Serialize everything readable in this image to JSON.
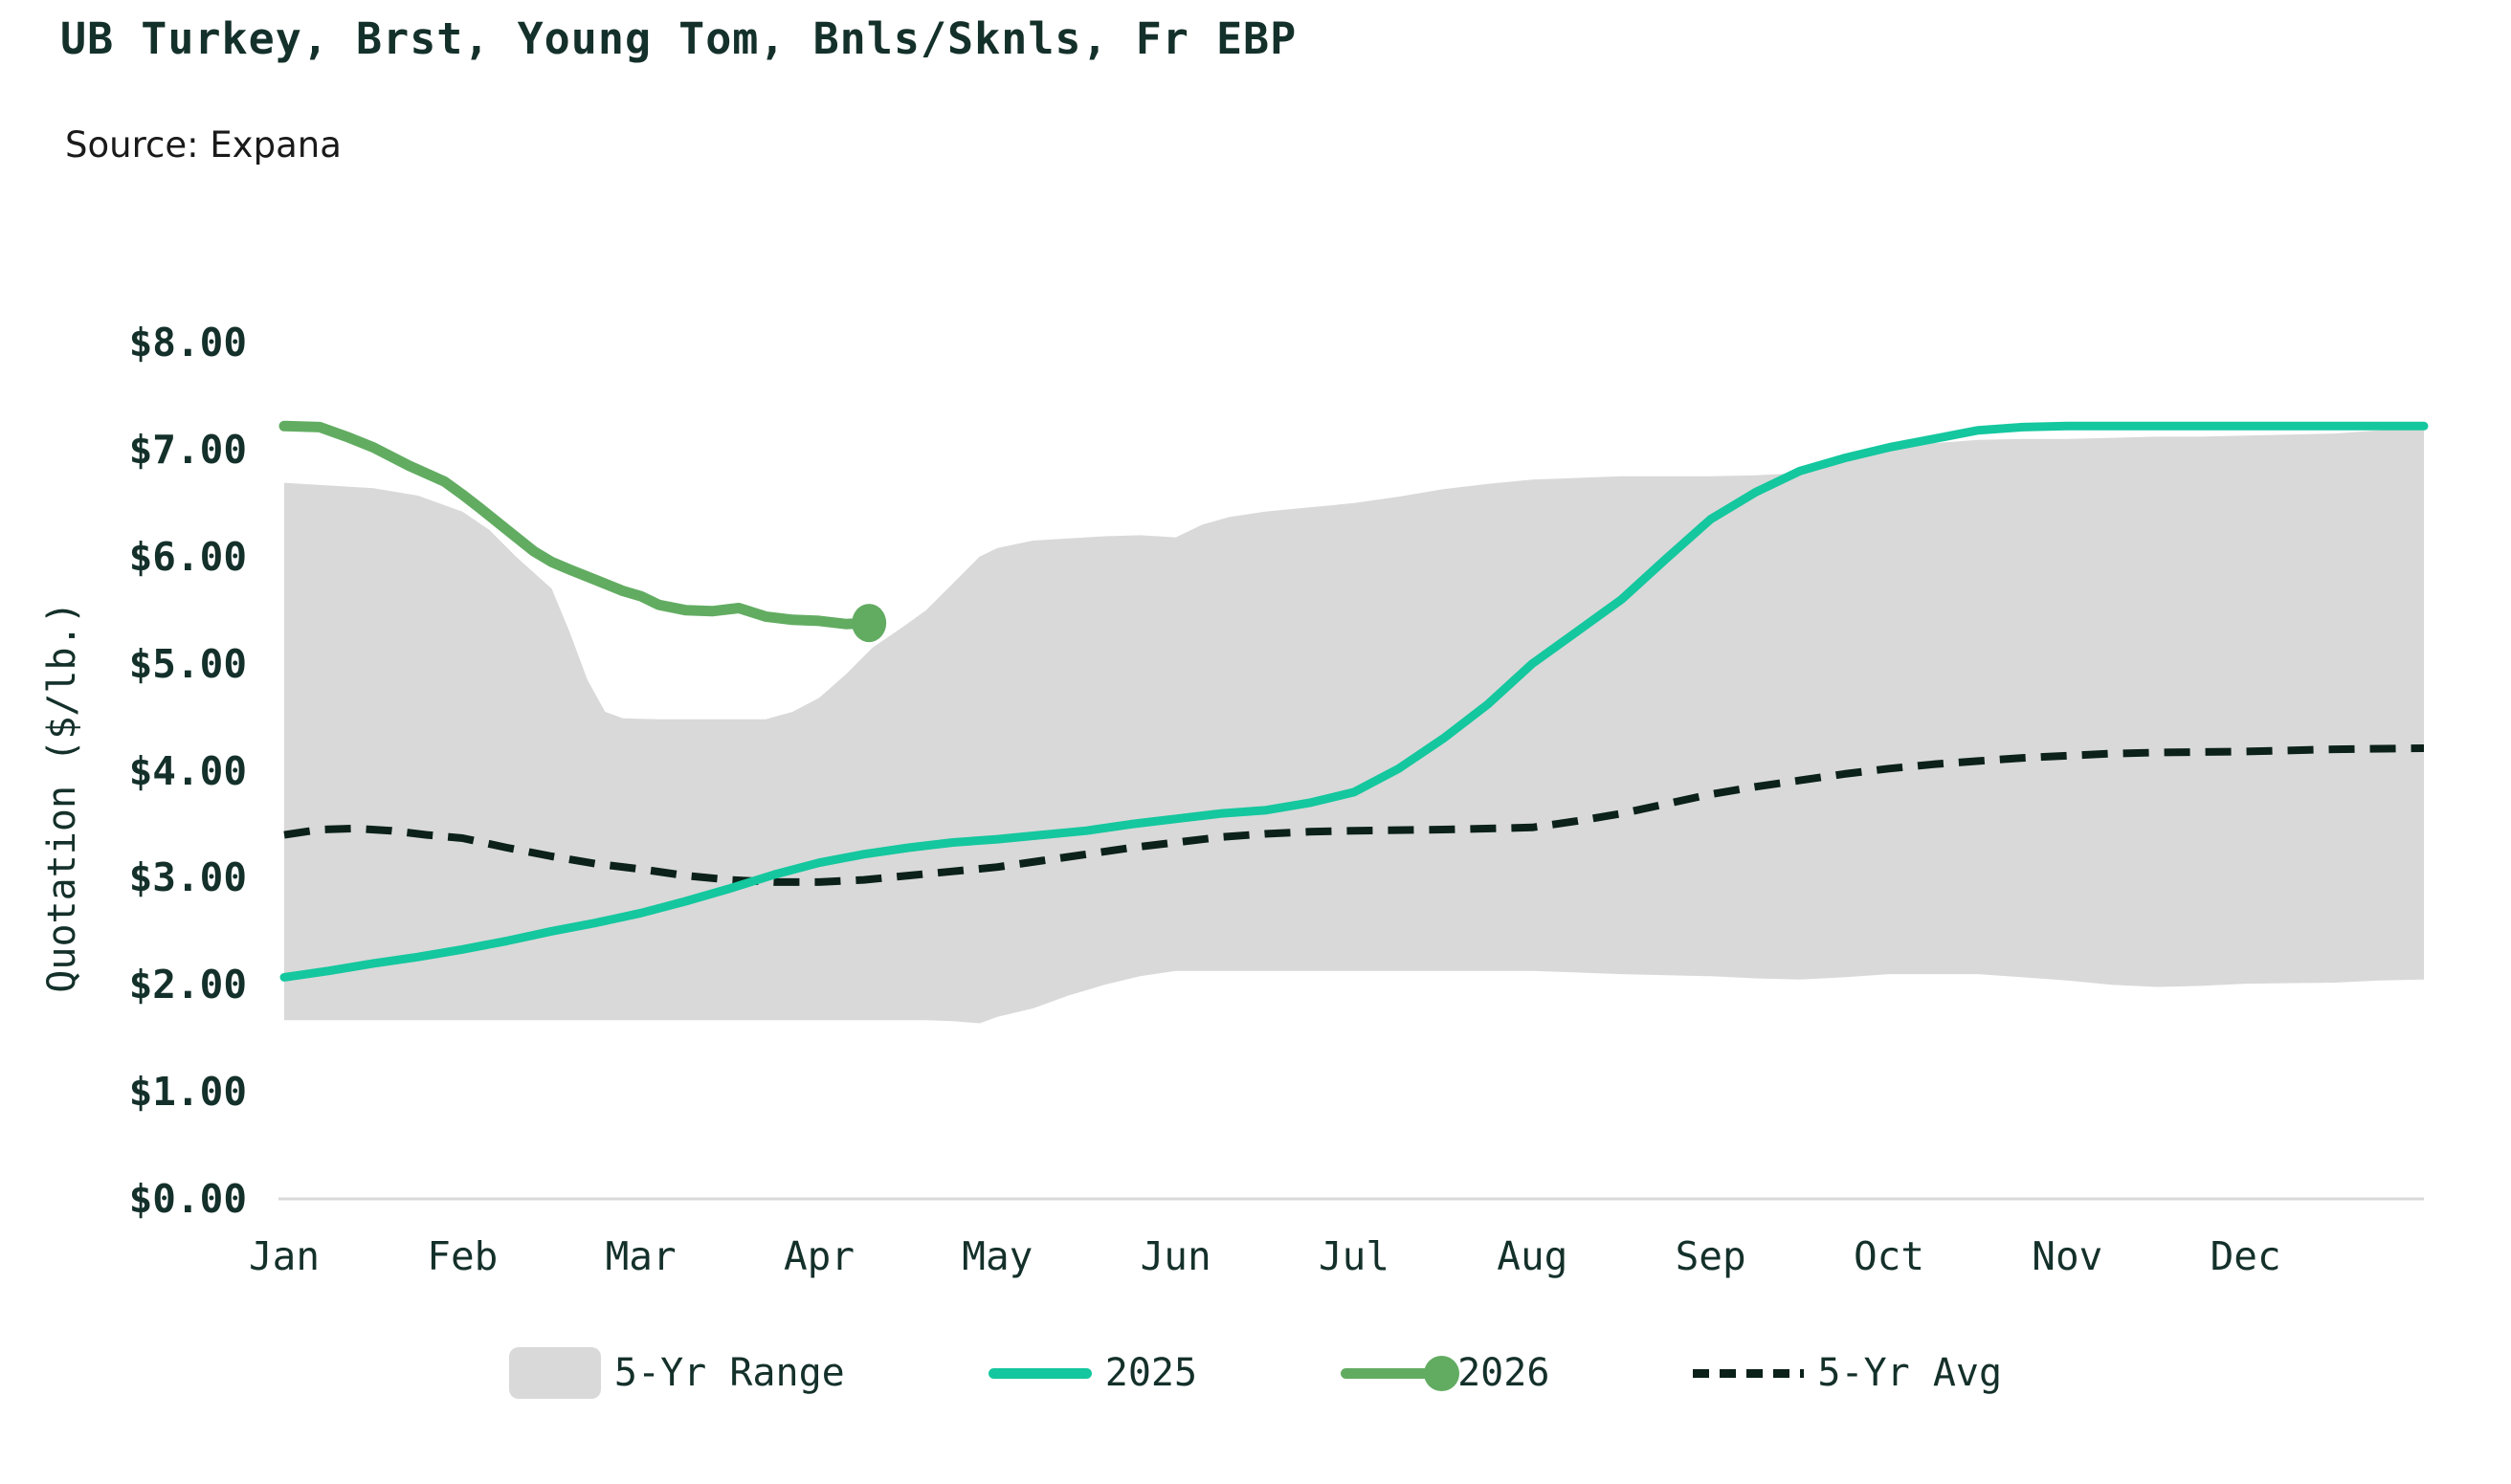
{
  "header": {
    "title": "UB Turkey, Brst, Young Tom, Bnls/Sknls, Fr EBP",
    "source": "Source: Expana"
  },
  "colors": {
    "band": "#d9d9d9",
    "line_2025": "#14c79e",
    "line_2026": "#62ac62",
    "line_avg": "#0b2119",
    "dark_text": "#14302a",
    "axis_line": "#d9d9d9"
  },
  "chart_data": {
    "type": "line",
    "title": "UB Turkey, Brst, Young Tom, Bnls/Sknls, Fr EBP",
    "subtitle": "Source: Expana",
    "xlabel": "",
    "ylabel": "Quotation ($/lb.)",
    "ylim": [
      0,
      8
    ],
    "xlim_months": [
      0,
      12
    ],
    "grid": false,
    "legend_position": "bottom",
    "x_unit": "month index, 0 = Jan 1 through 12 = Dec 31",
    "months": [
      "Jan",
      "Feb",
      "Mar",
      "Apr",
      "May",
      "Jun",
      "Jul",
      "Aug",
      "Sep",
      "Oct",
      "Nov",
      "Dec"
    ],
    "y_ticks": [
      {
        "value": 0,
        "label": "$0.00"
      },
      {
        "value": 1,
        "label": "$1.00"
      },
      {
        "value": 2,
        "label": "$2.00"
      },
      {
        "value": 3,
        "label": "$3.00"
      },
      {
        "value": 4,
        "label": "$4.00"
      },
      {
        "value": 5,
        "label": "$5.00"
      },
      {
        "value": 6,
        "label": "$6.00"
      },
      {
        "value": 7,
        "label": "$7.00"
      },
      {
        "value": 8,
        "label": "$8.00"
      }
    ],
    "series": [
      {
        "name": "5-Yr Range",
        "type": "band",
        "color": "#d9d9d9",
        "points": [
          [
            0,
            1.67,
            6.69
          ],
          [
            0.5,
            1.67,
            6.64
          ],
          [
            0.75,
            1.67,
            6.57
          ],
          [
            1.0,
            1.67,
            6.42
          ],
          [
            1.15,
            1.67,
            6.25
          ],
          [
            1.3,
            1.67,
            6.0
          ],
          [
            1.5,
            1.67,
            5.7
          ],
          [
            1.6,
            1.67,
            5.3
          ],
          [
            1.7,
            1.67,
            4.85
          ],
          [
            1.8,
            1.67,
            4.55
          ],
          [
            1.9,
            1.67,
            4.49
          ],
          [
            2.1,
            1.67,
            4.48
          ],
          [
            2.4,
            1.67,
            4.48
          ],
          [
            2.7,
            1.67,
            4.48
          ],
          [
            2.85,
            1.67,
            4.55
          ],
          [
            3.0,
            1.67,
            4.68
          ],
          [
            3.15,
            1.67,
            4.9
          ],
          [
            3.3,
            1.67,
            5.15
          ],
          [
            3.45,
            1.67,
            5.32
          ],
          [
            3.6,
            1.67,
            5.5
          ],
          [
            3.75,
            1.66,
            5.75
          ],
          [
            3.9,
            1.64,
            6.0
          ],
          [
            4.0,
            1.7,
            6.08
          ],
          [
            4.2,
            1.78,
            6.15
          ],
          [
            4.4,
            1.9,
            6.17
          ],
          [
            4.6,
            2.0,
            6.19
          ],
          [
            4.8,
            2.08,
            6.2
          ],
          [
            5.0,
            2.13,
            6.18
          ],
          [
            5.15,
            2.13,
            6.3
          ],
          [
            5.3,
            2.13,
            6.37
          ],
          [
            5.5,
            2.13,
            6.42
          ],
          [
            5.75,
            2.13,
            6.46
          ],
          [
            6.0,
            2.13,
            6.5
          ],
          [
            6.25,
            2.13,
            6.56
          ],
          [
            6.5,
            2.13,
            6.63
          ],
          [
            6.75,
            2.13,
            6.68
          ],
          [
            7.0,
            2.13,
            6.72
          ],
          [
            7.5,
            2.1,
            6.75
          ],
          [
            8.0,
            2.08,
            6.75
          ],
          [
            8.25,
            2.06,
            6.76
          ],
          [
            8.5,
            2.05,
            6.78
          ],
          [
            8.75,
            2.07,
            6.88
          ],
          [
            9.0,
            2.1,
            7.0
          ],
          [
            9.25,
            2.1,
            7.06
          ],
          [
            9.5,
            2.1,
            7.09
          ],
          [
            9.75,
            2.07,
            7.1
          ],
          [
            10.0,
            2.04,
            7.1
          ],
          [
            10.25,
            2.0,
            7.11
          ],
          [
            10.5,
            1.98,
            7.12
          ],
          [
            10.75,
            1.99,
            7.12
          ],
          [
            11.0,
            2.01,
            7.13
          ],
          [
            11.5,
            2.02,
            7.15
          ],
          [
            11.75,
            2.04,
            7.18
          ],
          [
            12,
            2.05,
            7.2
          ]
        ]
      },
      {
        "name": "2025",
        "type": "line",
        "color": "#14c79e",
        "points": [
          [
            0,
            2.07
          ],
          [
            0.25,
            2.13
          ],
          [
            0.5,
            2.2
          ],
          [
            0.75,
            2.26
          ],
          [
            1.0,
            2.33
          ],
          [
            1.25,
            2.41
          ],
          [
            1.5,
            2.5
          ],
          [
            1.75,
            2.58
          ],
          [
            2.0,
            2.67
          ],
          [
            2.25,
            2.78
          ],
          [
            2.5,
            2.9
          ],
          [
            2.75,
            3.03
          ],
          [
            3.0,
            3.14
          ],
          [
            3.25,
            3.22
          ],
          [
            3.5,
            3.28
          ],
          [
            3.75,
            3.33
          ],
          [
            4.0,
            3.36
          ],
          [
            4.25,
            3.4
          ],
          [
            4.5,
            3.44
          ],
          [
            4.75,
            3.5
          ],
          [
            5.0,
            3.55
          ],
          [
            5.25,
            3.6
          ],
          [
            5.5,
            3.63
          ],
          [
            5.75,
            3.7
          ],
          [
            6.0,
            3.8
          ],
          [
            6.25,
            4.02
          ],
          [
            6.5,
            4.3
          ],
          [
            6.75,
            4.62
          ],
          [
            7.0,
            5.0
          ],
          [
            7.25,
            5.3
          ],
          [
            7.5,
            5.6
          ],
          [
            7.75,
            5.98
          ],
          [
            8.0,
            6.35
          ],
          [
            8.25,
            6.6
          ],
          [
            8.5,
            6.8
          ],
          [
            8.75,
            6.92
          ],
          [
            9.0,
            7.02
          ],
          [
            9.25,
            7.1
          ],
          [
            9.5,
            7.18
          ],
          [
            9.75,
            7.21
          ],
          [
            10.0,
            7.22
          ],
          [
            10.5,
            7.22
          ],
          [
            11.0,
            7.22
          ],
          [
            11.5,
            7.22
          ],
          [
            12,
            7.22
          ]
        ]
      },
      {
        "name": "2026",
        "type": "line",
        "color": "#62ac62",
        "end_dot": {
          "x": 3.28,
          "value": 5.38
        },
        "points": [
          [
            0,
            7.22
          ],
          [
            0.2,
            7.21
          ],
          [
            0.35,
            7.12
          ],
          [
            0.5,
            7.02
          ],
          [
            0.7,
            6.85
          ],
          [
            0.9,
            6.7
          ],
          [
            1.0,
            6.58
          ],
          [
            1.1,
            6.45
          ],
          [
            1.25,
            6.25
          ],
          [
            1.4,
            6.05
          ],
          [
            1.5,
            5.95
          ],
          [
            1.6,
            5.88
          ],
          [
            1.75,
            5.78
          ],
          [
            1.9,
            5.68
          ],
          [
            2.0,
            5.63
          ],
          [
            2.1,
            5.55
          ],
          [
            2.25,
            5.5
          ],
          [
            2.4,
            5.49
          ],
          [
            2.55,
            5.52
          ],
          [
            2.7,
            5.44
          ],
          [
            2.85,
            5.41
          ],
          [
            3.0,
            5.4
          ],
          [
            3.15,
            5.37
          ],
          [
            3.28,
            5.38
          ]
        ]
      },
      {
        "name": "5-Yr Avg",
        "type": "dashed",
        "color": "#0b2119",
        "points": [
          [
            0,
            3.4
          ],
          [
            0.2,
            3.45
          ],
          [
            0.4,
            3.46
          ],
          [
            0.6,
            3.44
          ],
          [
            0.8,
            3.4
          ],
          [
            1.0,
            3.37
          ],
          [
            1.25,
            3.28
          ],
          [
            1.5,
            3.2
          ],
          [
            1.75,
            3.13
          ],
          [
            2.0,
            3.08
          ],
          [
            2.25,
            3.02
          ],
          [
            2.5,
            2.98
          ],
          [
            2.75,
            2.96
          ],
          [
            3.0,
            2.96
          ],
          [
            3.25,
            2.98
          ],
          [
            3.5,
            3.02
          ],
          [
            3.75,
            3.06
          ],
          [
            4.0,
            3.1
          ],
          [
            4.25,
            3.16
          ],
          [
            4.5,
            3.22
          ],
          [
            4.75,
            3.28
          ],
          [
            5.0,
            3.33
          ],
          [
            5.25,
            3.38
          ],
          [
            5.5,
            3.41
          ],
          [
            5.75,
            3.43
          ],
          [
            6.0,
            3.44
          ],
          [
            6.5,
            3.45
          ],
          [
            7.0,
            3.47
          ],
          [
            7.25,
            3.53
          ],
          [
            7.5,
            3.6
          ],
          [
            7.75,
            3.69
          ],
          [
            8.0,
            3.78
          ],
          [
            8.25,
            3.85
          ],
          [
            8.5,
            3.91
          ],
          [
            8.75,
            3.97
          ],
          [
            9.0,
            4.02
          ],
          [
            9.25,
            4.06
          ],
          [
            9.5,
            4.09
          ],
          [
            9.75,
            4.12
          ],
          [
            10.0,
            4.14
          ],
          [
            10.25,
            4.16
          ],
          [
            10.5,
            4.17
          ],
          [
            11.0,
            4.18
          ],
          [
            11.5,
            4.2
          ],
          [
            12,
            4.21
          ]
        ]
      }
    ],
    "legend": [
      {
        "label": "5-Yr Range",
        "swatch": "band"
      },
      {
        "label": "2025",
        "swatch": "line"
      },
      {
        "label": "2026",
        "swatch": "line-dot"
      },
      {
        "label": "5-Yr Avg",
        "swatch": "dash"
      }
    ]
  }
}
